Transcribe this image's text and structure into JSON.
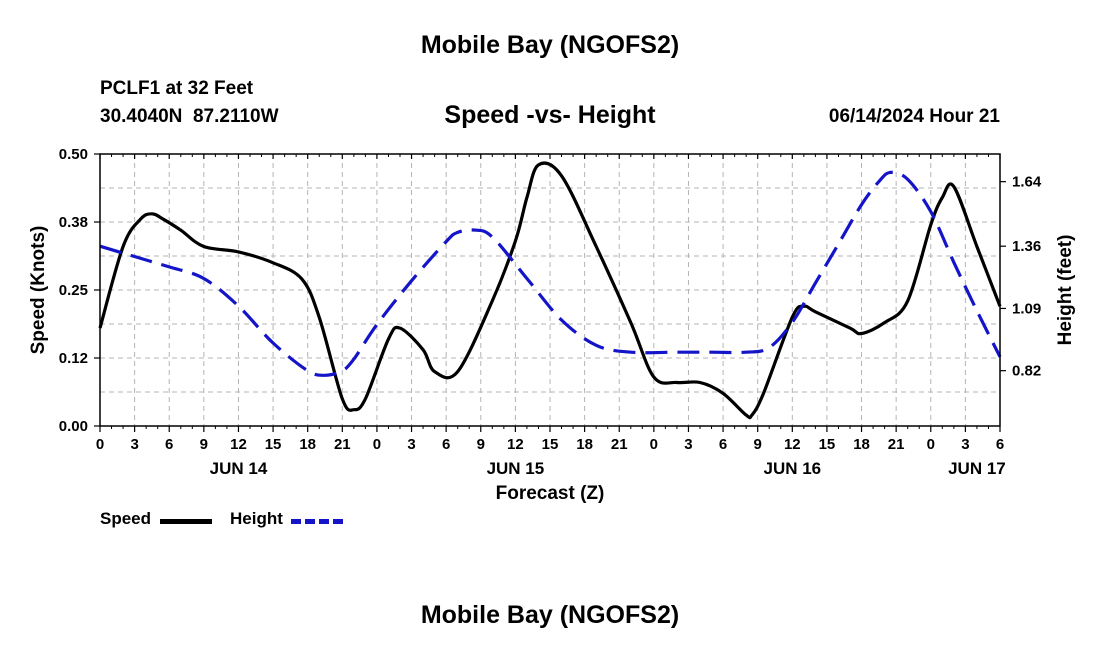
{
  "header": {
    "title": "Mobile Bay (NGOFS2)",
    "station": "PCLF1 at 32 Feet",
    "coords": "30.4040N  87.2110W",
    "subtitle": "Speed -vs- Height",
    "timestamp": "06/14/2024 Hour 21"
  },
  "footer": {
    "title": "Mobile Bay (NGOFS2)"
  },
  "legend": {
    "speed_label": "Speed",
    "height_label": "Height"
  },
  "colors": {
    "speed": "#000000",
    "height": "#1414c8",
    "grid": "#b4b4b4"
  },
  "chart_data": {
    "type": "line",
    "title": "Speed -vs- Height",
    "xlabel": "Forecast (Z)",
    "ylabel": "Speed (Knots)",
    "y2label": "Height (feet)",
    "xlim": [
      0,
      78
    ],
    "ylim": [
      0,
      0.5
    ],
    "y2lim": [
      0.58,
      1.76
    ],
    "x_ticks": [
      0,
      3,
      6,
      9,
      12,
      15,
      18,
      21,
      24,
      27,
      30,
      33,
      36,
      39,
      42,
      45,
      48,
      51,
      54,
      57,
      60,
      63,
      66,
      69,
      72,
      75,
      78
    ],
    "x_tick_labels": [
      "0",
      "3",
      "6",
      "9",
      "12",
      "15",
      "18",
      "21",
      "0",
      "3",
      "6",
      "9",
      "12",
      "15",
      "18",
      "21",
      "0",
      "3",
      "6",
      "9",
      "12",
      "15",
      "18",
      "21",
      "0",
      "3",
      "6"
    ],
    "y_ticks": [
      0,
      0.125,
      0.25,
      0.375,
      0.5
    ],
    "y_tick_labels": [
      "0.00",
      "0.12",
      "0.25",
      "0.38",
      "0.50"
    ],
    "y2_ticks": [
      0.82,
      1.09,
      1.36,
      1.64
    ],
    "y2_tick_labels": [
      "0.82",
      "1.09",
      "1.36",
      "1.64"
    ],
    "date_labels": [
      {
        "x": 12,
        "label": "JUN 14"
      },
      {
        "x": 36,
        "label": "JUN 15"
      },
      {
        "x": 60,
        "label": "JUN 16"
      },
      {
        "x": 76,
        "label": "JUN 17"
      }
    ],
    "grid": true,
    "series": [
      {
        "name": "Speed",
        "axis": "left",
        "style": "solid",
        "x": [
          0,
          2,
          3.5,
          4.5,
          5.5,
          7,
          9,
          12,
          15,
          17.5,
          19,
          21,
          22,
          23,
          25,
          26,
          28,
          29,
          31,
          34,
          36,
          37,
          38,
          40,
          43,
          46,
          48,
          50,
          52,
          54,
          56,
          56.5,
          57.5,
          60,
          61,
          62,
          65,
          66,
          68,
          70,
          72,
          73,
          74,
          76,
          78
        ],
        "y": [
          0.18,
          0.33,
          0.38,
          0.39,
          0.38,
          0.36,
          0.33,
          0.32,
          0.3,
          0.27,
          0.2,
          0.05,
          0.03,
          0.05,
          0.16,
          0.18,
          0.14,
          0.1,
          0.1,
          0.23,
          0.34,
          0.42,
          0.48,
          0.46,
          0.33,
          0.19,
          0.09,
          0.08,
          0.08,
          0.06,
          0.02,
          0.02,
          0.06,
          0.2,
          0.22,
          0.21,
          0.18,
          0.17,
          0.19,
          0.23,
          0.37,
          0.42,
          0.44,
          0.33,
          0.22
        ]
      },
      {
        "name": "Height",
        "axis": "right",
        "style": "dashed",
        "x": [
          0,
          2,
          4,
          6,
          9,
          12,
          15,
          18,
          19.5,
          21,
          22,
          24,
          27,
          30,
          31,
          32.5,
          34,
          37,
          40,
          43,
          46,
          50,
          53,
          56,
          58,
          60,
          62,
          64,
          66,
          67.5,
          68.5,
          70,
          72,
          74,
          76,
          78
        ],
        "y": [
          1.36,
          1.33,
          1.3,
          1.27,
          1.22,
          1.1,
          0.94,
          0.82,
          0.8,
          0.82,
          0.87,
          1.02,
          1.21,
          1.38,
          1.42,
          1.43,
          1.4,
          1.22,
          1.04,
          0.93,
          0.9,
          0.9,
          0.9,
          0.9,
          0.92,
          1.03,
          1.2,
          1.37,
          1.54,
          1.64,
          1.68,
          1.65,
          1.51,
          1.29,
          1.08,
          0.88
        ]
      }
    ]
  }
}
